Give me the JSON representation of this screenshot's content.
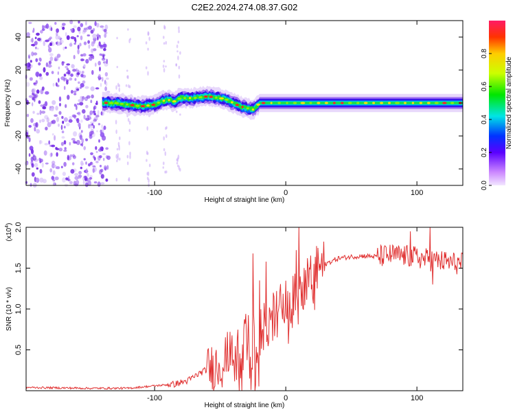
{
  "title": "C2E2.2024.274.08.37.G02",
  "chart_data": [
    {
      "type": "heatmap",
      "name": "spectrogram",
      "xlabel": "Height of straight line (km)",
      "ylabel": "Frequency (Hz)",
      "xlim": [
        -198,
        135
      ],
      "ylim": [
        -50,
        50
      ],
      "x_ticks": [
        -100,
        0,
        100
      ],
      "x_tick_labels": [
        "-100",
        "0",
        "100"
      ],
      "y_ticks": [
        -40,
        -20,
        0,
        20,
        40
      ],
      "y_tick_labels": [
        "-40",
        "-20",
        "0",
        "20",
        "40"
      ],
      "colorbar": {
        "label": "Normalized spectral amplitude",
        "range": [
          0,
          1
        ],
        "ticks": [
          0,
          0.2,
          0.4,
          0.6,
          0.8
        ],
        "tick_labels": [
          "0.0",
          "0.2",
          "0.4",
          "0.6",
          "0.8"
        ]
      },
      "noise_region_x": [
        -198,
        -135
      ],
      "signal_start_x": -140,
      "ridge": {
        "x": [
          -140,
          -130,
          -120,
          -110,
          -100,
          -95,
          -90,
          -85,
          -80,
          -70,
          -60,
          -50,
          -45,
          -40,
          -35,
          -30,
          -25,
          -22,
          -20,
          0,
          10,
          20,
          40,
          60,
          80,
          100,
          120,
          135
        ],
        "freq_hz": [
          0,
          0,
          -1,
          -2,
          -1,
          1,
          2,
          1,
          3,
          3,
          4,
          3,
          2,
          0,
          -2,
          -3,
          -4,
          -2,
          0,
          0,
          0,
          0,
          0,
          0,
          0,
          0,
          0,
          0
        ]
      }
    },
    {
      "type": "line",
      "name": "snr",
      "xlabel": "Height of straight line (km)",
      "ylabel": "SNR (10 * v/v)",
      "ylabel_multiplier": "(x10",
      "ylabel_exponent": "4",
      "ylabel_close": ")",
      "xlim": [
        -198,
        135
      ],
      "ylim": [
        0,
        2.0
      ],
      "x_ticks": [
        -100,
        0,
        100
      ],
      "x_tick_labels": [
        "-100",
        "0",
        "100"
      ],
      "y_ticks": [
        0.5,
        1.0,
        1.5,
        2.0
      ],
      "y_tick_labels": [
        "0.5",
        "1.0",
        "1.5",
        "2.0"
      ],
      "color": "#e03030",
      "envelope": {
        "x": [
          -198,
          -150,
          -120,
          -100,
          -85,
          -75,
          -65,
          -55,
          -45,
          -35,
          -30,
          -25,
          -20,
          -15,
          -10,
          -5,
          0,
          5,
          10,
          15,
          20,
          25,
          30,
          40,
          50,
          60,
          70,
          80,
          90,
          100,
          110,
          120,
          130,
          135
        ],
        "snr_x1e4": [
          0.04,
          0.03,
          0.03,
          0.06,
          0.08,
          0.12,
          0.22,
          0.3,
          0.38,
          0.5,
          0.55,
          0.62,
          0.7,
          0.8,
          0.9,
          1.0,
          1.05,
          1.1,
          1.2,
          1.3,
          1.4,
          1.48,
          1.55,
          1.62,
          1.64,
          1.65,
          1.64,
          1.66,
          1.65,
          1.63,
          1.6,
          1.58,
          1.56,
          1.55
        ]
      },
      "spikes": {
        "x": [
          -25,
          -20,
          -15,
          8,
          10,
          25,
          95,
          110,
          112
        ],
        "snr_x1e4": [
          1.68,
          1.35,
          1.58,
          1.72,
          2.0,
          1.6,
          1.95,
          2.0,
          1.3
        ]
      }
    }
  ]
}
